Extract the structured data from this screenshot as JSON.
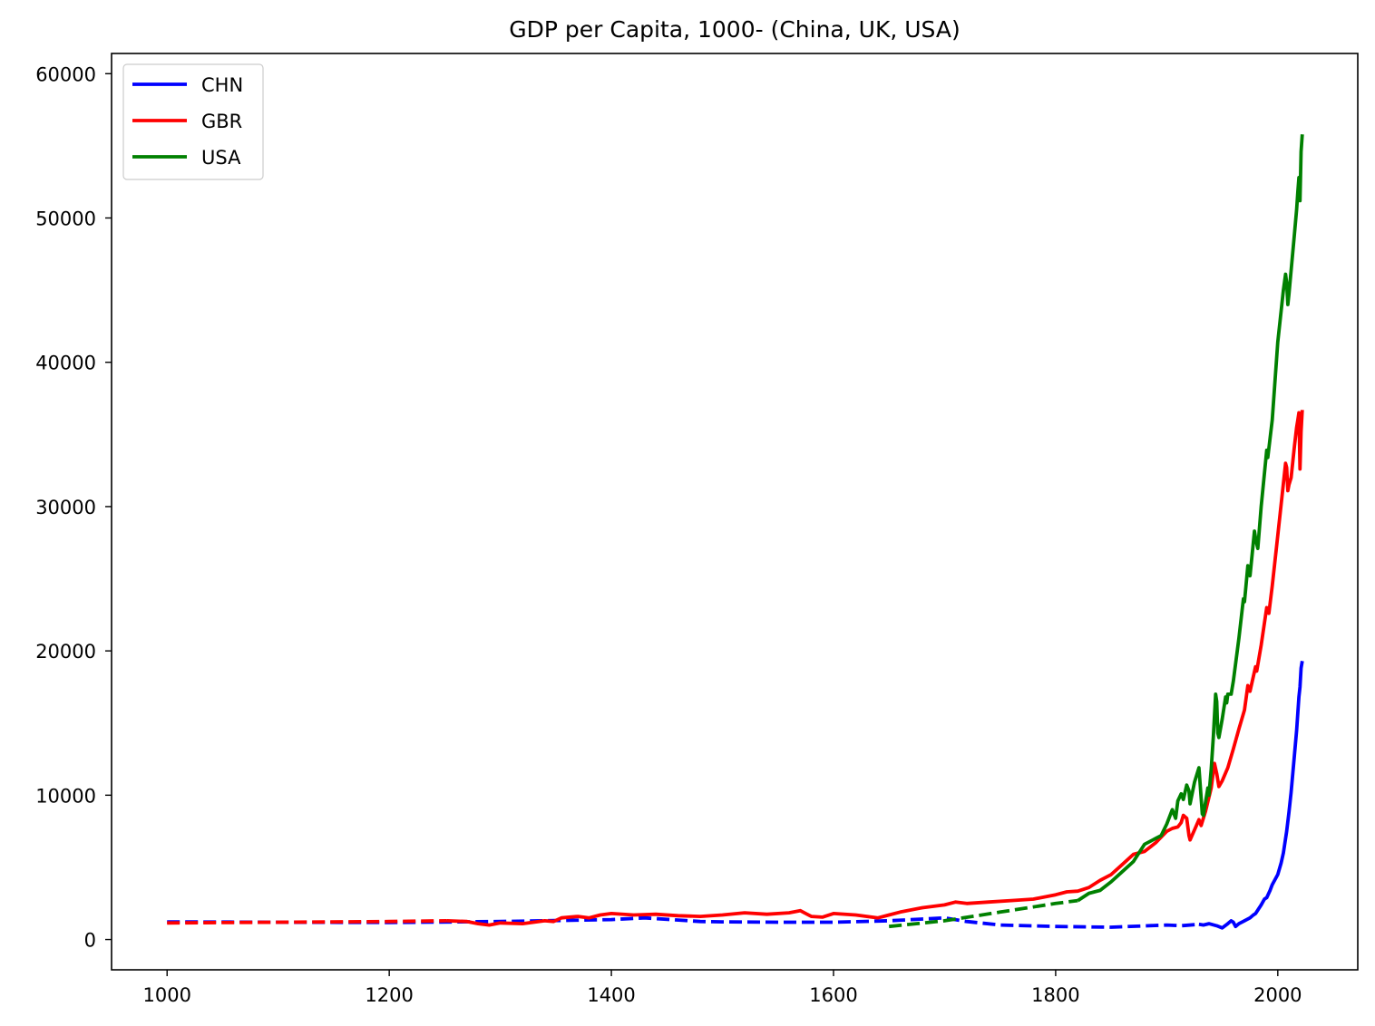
{
  "chart_data": {
    "type": "line",
    "title": "GDP per Capita, 1000- (China, UK, USA)",
    "xlabel": "",
    "ylabel": "",
    "xlim": [
      950,
      2072
    ],
    "ylim": [
      -2100,
      61400
    ],
    "xticks": [
      1000,
      1200,
      1400,
      1600,
      1800,
      2000
    ],
    "yticks": [
      0,
      10000,
      20000,
      30000,
      40000,
      50000,
      60000
    ],
    "grid": false,
    "legend_position": "top-left",
    "series": [
      {
        "name": "CHN",
        "color": "#0000ff",
        "dashed_segments": [
          [
            [
              1000,
              1225
            ],
            [
              1100,
              1200
            ],
            [
              1200,
              1180
            ],
            [
              1300,
              1250
            ],
            [
              1400,
              1380
            ],
            [
              1430,
              1500
            ],
            [
              1480,
              1250
            ],
            [
              1500,
              1225
            ],
            [
              1550,
              1200
            ],
            [
              1600,
              1200
            ],
            [
              1650,
              1300
            ],
            [
              1700,
              1500
            ],
            [
              1720,
              1250
            ],
            [
              1750,
              1000
            ],
            [
              1800,
              900
            ],
            [
              1850,
              850
            ],
            [
              1900,
              1000
            ],
            [
              1913,
              950
            ],
            [
              1929,
              1050
            ]
          ]
        ],
        "solid_segments": [
          [
            [
              1929,
              1050
            ],
            [
              1933,
              1000
            ],
            [
              1938,
              1100
            ],
            [
              1945,
              950
            ],
            [
              1950,
              800
            ],
            [
              1955,
              1100
            ],
            [
              1958,
              1300
            ],
            [
              1960,
              1200
            ],
            [
              1962,
              900
            ],
            [
              1965,
              1100
            ],
            [
              1970,
              1300
            ],
            [
              1975,
              1500
            ],
            [
              1978,
              1700
            ],
            [
              1980,
              1800
            ],
            [
              1985,
              2400
            ],
            [
              1988,
              2800
            ],
            [
              1990,
              2900
            ],
            [
              1993,
              3400
            ],
            [
              1995,
              3800
            ],
            [
              2000,
              4500
            ],
            [
              2003,
              5300
            ],
            [
              2005,
              6000
            ],
            [
              2008,
              7500
            ],
            [
              2010,
              8800
            ],
            [
              2012,
              10200
            ],
            [
              2015,
              12800
            ],
            [
              2017,
              14500
            ],
            [
              2018,
              15700
            ],
            [
              2019,
              16800
            ],
            [
              2020,
              17500
            ],
            [
              2021,
              18800
            ],
            [
              2022,
              19300
            ]
          ]
        ]
      },
      {
        "name": "GBR",
        "color": "#ff0000",
        "dashed_segments": [
          [
            [
              1000,
              1150
            ],
            [
              1100,
              1200
            ],
            [
              1200,
              1250
            ],
            [
              1252,
              1300
            ]
          ]
        ],
        "solid_segments": [
          [
            [
              1252,
              1300
            ],
            [
              1270,
              1250
            ],
            [
              1280,
              1100
            ],
            [
              1290,
              1000
            ],
            [
              1300,
              1150
            ],
            [
              1320,
              1100
            ],
            [
              1340,
              1300
            ],
            [
              1348,
              1250
            ],
            [
              1355,
              1500
            ],
            [
              1370,
              1600
            ],
            [
              1380,
              1500
            ],
            [
              1390,
              1700
            ],
            [
              1400,
              1800
            ],
            [
              1420,
              1700
            ],
            [
              1440,
              1750
            ],
            [
              1460,
              1650
            ],
            [
              1480,
              1600
            ],
            [
              1500,
              1700
            ],
            [
              1520,
              1850
            ],
            [
              1540,
              1750
            ],
            [
              1560,
              1850
            ],
            [
              1570,
              2000
            ],
            [
              1580,
              1600
            ],
            [
              1590,
              1550
            ],
            [
              1600,
              1800
            ],
            [
              1620,
              1700
            ],
            [
              1640,
              1500
            ],
            [
              1650,
              1700
            ],
            [
              1660,
              1900
            ],
            [
              1680,
              2200
            ],
            [
              1700,
              2400
            ],
            [
              1710,
              2600
            ],
            [
              1720,
              2500
            ],
            [
              1740,
              2600
            ],
            [
              1760,
              2700
            ],
            [
              1780,
              2800
            ],
            [
              1800,
              3100
            ],
            [
              1810,
              3300
            ],
            [
              1820,
              3350
            ],
            [
              1830,
              3600
            ],
            [
              1840,
              4100
            ],
            [
              1850,
              4500
            ],
            [
              1860,
              5200
            ],
            [
              1870,
              5900
            ],
            [
              1880,
              6100
            ],
            [
              1890,
              6700
            ],
            [
              1900,
              7500
            ],
            [
              1905,
              7700
            ],
            [
              1910,
              7800
            ],
            [
              1913,
              8100
            ],
            [
              1915,
              8600
            ],
            [
              1918,
              8400
            ],
            [
              1920,
              7200
            ],
            [
              1921,
              6900
            ],
            [
              1925,
              7600
            ],
            [
              1929,
              8300
            ],
            [
              1931,
              7900
            ],
            [
              1935,
              8900
            ],
            [
              1940,
              10500
            ],
            [
              1943,
              12200
            ],
            [
              1945,
              11500
            ],
            [
              1947,
              10600
            ],
            [
              1950,
              11000
            ],
            [
              1955,
              11900
            ],
            [
              1960,
              13200
            ],
            [
              1965,
              14600
            ],
            [
              1970,
              15900
            ],
            [
              1973,
              17600
            ],
            [
              1975,
              17200
            ],
            [
              1980,
              18900
            ],
            [
              1981,
              18600
            ],
            [
              1985,
              20400
            ],
            [
              1990,
              23000
            ],
            [
              1992,
              22600
            ],
            [
              1995,
              24500
            ],
            [
              2000,
              28000
            ],
            [
              2005,
              31600
            ],
            [
              2007,
              33000
            ],
            [
              2008,
              32700
            ],
            [
              2009,
              31100
            ],
            [
              2010,
              31500
            ],
            [
              2012,
              32000
            ],
            [
              2015,
              34200
            ],
            [
              2017,
              35500
            ],
            [
              2018,
              36000
            ],
            [
              2019,
              36500
            ],
            [
              2020,
              32600
            ],
            [
              2021,
              35200
            ],
            [
              2022,
              36700
            ]
          ]
        ]
      },
      {
        "name": "USA",
        "color": "#008000",
        "dashed_segments": [
          [
            [
              1650,
              900
            ],
            [
              1700,
              1300
            ],
            [
              1750,
              1900
            ],
            [
              1800,
              2500
            ],
            [
              1820,
              2700
            ]
          ]
        ],
        "solid_segments": [
          [
            [
              1820,
              2700
            ],
            [
              1830,
              3200
            ],
            [
              1840,
              3400
            ],
            [
              1850,
              4000
            ],
            [
              1860,
              4700
            ],
            [
              1870,
              5400
            ],
            [
              1880,
              6600
            ],
            [
              1890,
              7000
            ],
            [
              1895,
              7200
            ],
            [
              1900,
              8000
            ],
            [
              1905,
              9000
            ],
            [
              1908,
              8400
            ],
            [
              1910,
              9600
            ],
            [
              1913,
              10100
            ],
            [
              1915,
              9700
            ],
            [
              1918,
              10700
            ],
            [
              1920,
              10300
            ],
            [
              1921,
              9400
            ],
            [
              1925,
              10900
            ],
            [
              1929,
              11900
            ],
            [
              1932,
              8700
            ],
            [
              1933,
              8600
            ],
            [
              1937,
              10500
            ],
            [
              1938,
              10000
            ],
            [
              1940,
              11800
            ],
            [
              1942,
              14100
            ],
            [
              1944,
              17000
            ],
            [
              1945,
              16500
            ],
            [
              1946,
              14300
            ],
            [
              1947,
              14000
            ],
            [
              1950,
              15300
            ],
            [
              1953,
              16800
            ],
            [
              1954,
              16400
            ],
            [
              1955,
              17000
            ],
            [
              1958,
              17000
            ],
            [
              1960,
              17900
            ],
            [
              1965,
              20900
            ],
            [
              1969,
              23600
            ],
            [
              1970,
              23400
            ],
            [
              1973,
              25900
            ],
            [
              1975,
              25200
            ],
            [
              1979,
              28300
            ],
            [
              1980,
              27800
            ],
            [
              1982,
              27100
            ],
            [
              1985,
              30000
            ],
            [
              1990,
              33900
            ],
            [
              1991,
              33400
            ],
            [
              1995,
              36000
            ],
            [
              2000,
              41400
            ],
            [
              2005,
              45000
            ],
            [
              2007,
              46100
            ],
            [
              2008,
              45500
            ],
            [
              2009,
              44000
            ],
            [
              2010,
              44700
            ],
            [
              2015,
              48900
            ],
            [
              2017,
              50600
            ],
            [
              2018,
              51800
            ],
            [
              2019,
              52800
            ],
            [
              2020,
              51200
            ],
            [
              2021,
              54600
            ],
            [
              2022,
              55800
            ]
          ]
        ]
      }
    ]
  }
}
